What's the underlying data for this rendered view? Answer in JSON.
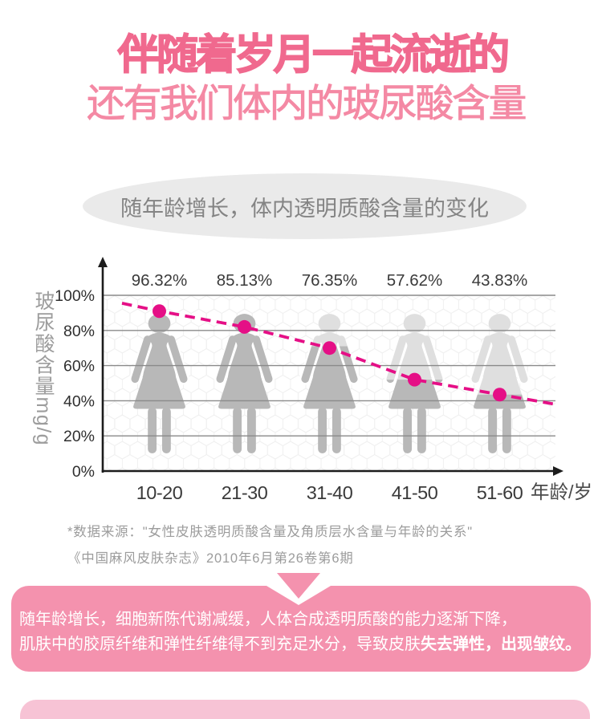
{
  "header": {
    "title_line1": "伴随着岁月一起流逝的",
    "title_line2": "还有我们体内的玻尿酸含量",
    "title1_color": "#f0698e",
    "title2_color": "#f489a4"
  },
  "chart_data": {
    "type": "line",
    "title": "随年龄增长，体内透明质酸含量的变化",
    "categories": [
      "10-20",
      "21-30",
      "31-40",
      "41-50",
      "51-60"
    ],
    "values": [
      96.32,
      85.13,
      76.35,
      57.62,
      43.83
    ],
    "marker_percents": [
      91,
      82,
      70,
      52,
      43.5
    ],
    "figure_fill_percents": [
      100,
      100,
      71,
      52,
      43.5
    ],
    "trend_start_percent": 95.5,
    "trend_end_percent": 38,
    "xlabel": "年龄/岁",
    "ylabel": "玻尿酸含量mg/g",
    "y_ticks": [
      "0%",
      "20%",
      "40%",
      "60%",
      "80%",
      "100%"
    ],
    "ylim": [
      0,
      100
    ],
    "grid": true,
    "line_style": "dashed",
    "accent_color": "#e50f86",
    "figure_dark_color": "#b8b8b8",
    "figure_light_color": "#dfdfdf"
  },
  "source_note": {
    "line1": "*数据来源：\"女性皮肤透明质酸含量及角质层水含量与年龄的关系\"",
    "line2": "《中国麻风皮肤杂志》2010年6月第26卷第6期"
  },
  "callout": {
    "line1": "随年龄增长，细胞新陈代谢减缓，人体合成透明质酸的能力逐渐下降，",
    "line2_regular": "肌肤中的胶原纤维和弹性纤维得不到充足水分，导致皮肤",
    "line2_bold": "失去弹性，出现皱纹。",
    "bg_color": "#f492ae"
  },
  "next_section": {
    "bg_color": "#f7c3d5"
  }
}
